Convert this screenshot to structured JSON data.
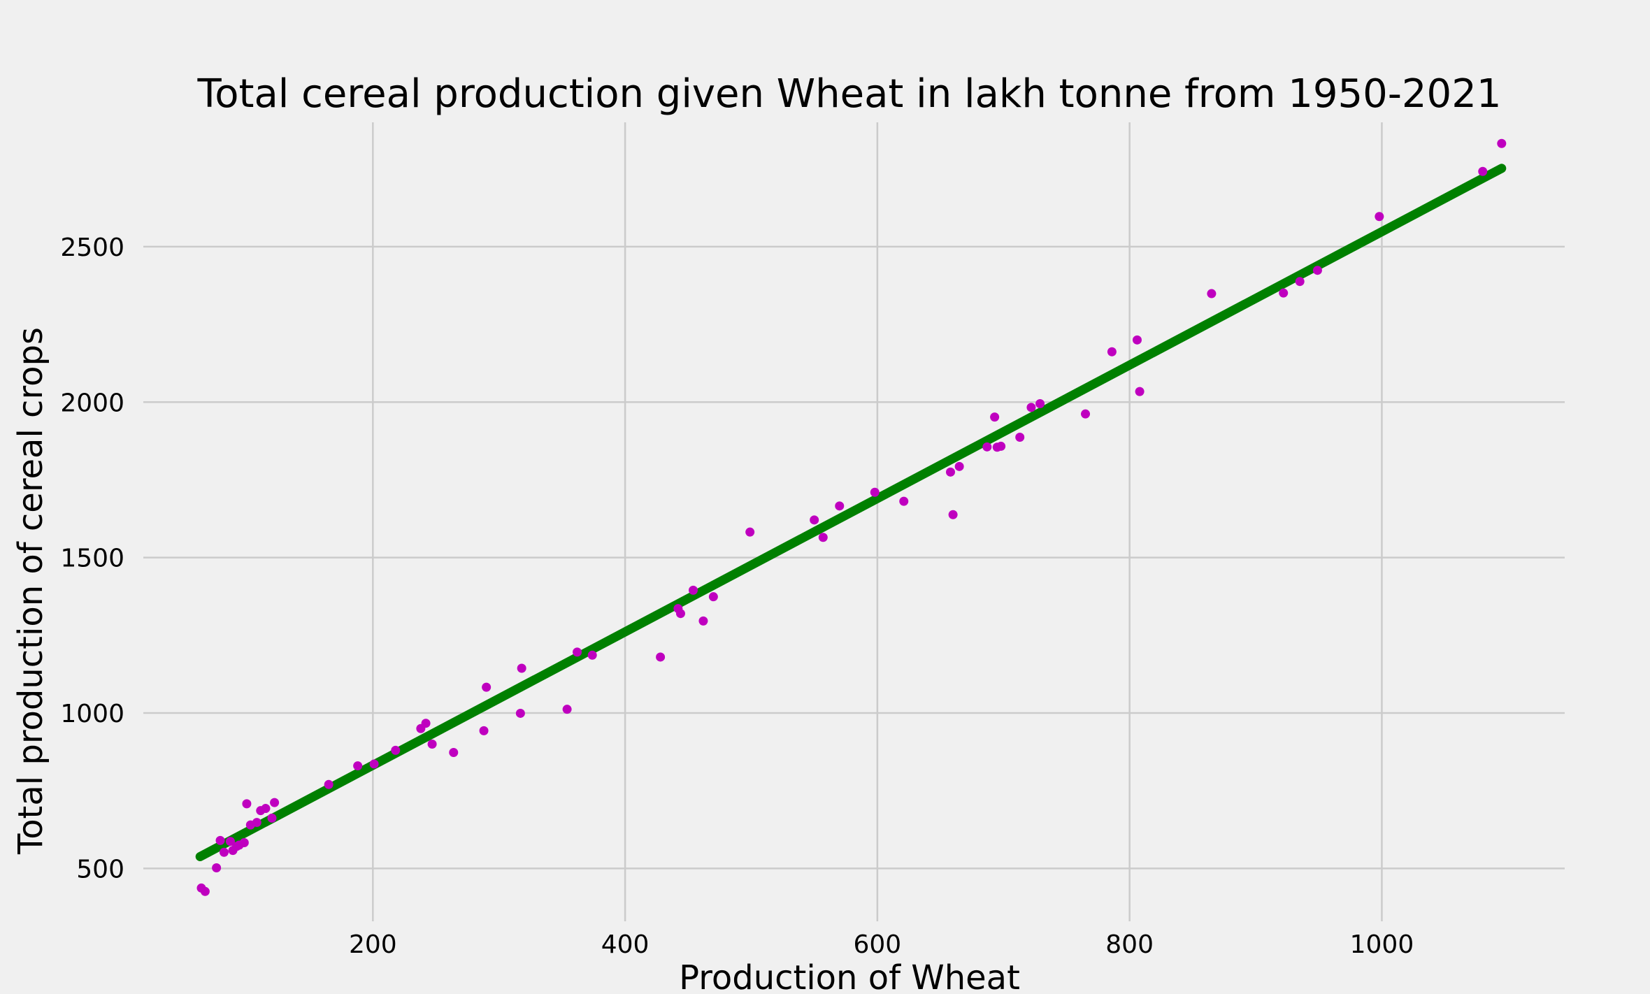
{
  "chart_data": {
    "type": "scatter",
    "title": "Total cereal production given Wheat in lakh tonne from 1950-2021",
    "xlabel": "Production of Wheat",
    "ylabel": "Total production of cereal crops",
    "xlim": [
      18,
      1145
    ],
    "ylim": [
      330,
      2900
    ],
    "xticks": [
      200,
      400,
      600,
      800,
      1000
    ],
    "yticks": [
      500,
      1000,
      1500,
      2000,
      2500
    ],
    "grid": true,
    "legend": "none",
    "colors": {
      "background": "#f0f0f0",
      "grid": "#cbcbcb",
      "points": "#bf00bf",
      "fit_line": "#008000"
    },
    "series": [
      {
        "kind": "points",
        "x": [
          64,
          67,
          76,
          79,
          82,
          87,
          89,
          92,
          94,
          98,
          100,
          103,
          108,
          111,
          115,
          120,
          122,
          165,
          188,
          201,
          218,
          238,
          242,
          247,
          264,
          288,
          290,
          317,
          318,
          354,
          362,
          374,
          428,
          442,
          444,
          454,
          462,
          470,
          499,
          550,
          557,
          570,
          598,
          621,
          658,
          660,
          665,
          687,
          693,
          695,
          698,
          713,
          722,
          729,
          765,
          786,
          806,
          808,
          865,
          922,
          935,
          949,
          998,
          1080,
          1095
        ],
        "y": [
          437,
          426,
          502,
          590,
          552,
          587,
          558,
          571,
          575,
          583,
          708,
          640,
          648,
          686,
          693,
          662,
          712,
          770,
          830,
          836,
          880,
          950,
          967,
          900,
          873,
          943,
          1083,
          999,
          1144,
          1012,
          1196,
          1186,
          1180,
          1336,
          1320,
          1395,
          1296,
          1374,
          1582,
          1621,
          1565,
          1666,
          1710,
          1681,
          1775,
          1638,
          1793,
          1856,
          1952,
          1855,
          1858,
          1887,
          1983,
          1995,
          1962,
          2162,
          2200,
          2034,
          2349,
          2351,
          2388,
          2424,
          2597,
          2742,
          2832
        ]
      },
      {
        "kind": "line",
        "x": [
          63,
          1095
        ],
        "y": [
          538,
          2752
        ]
      }
    ]
  }
}
